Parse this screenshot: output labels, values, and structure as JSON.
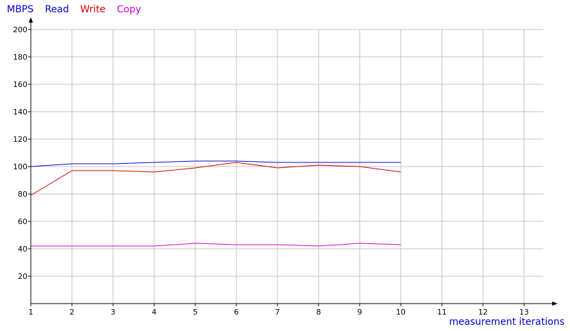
{
  "chart_data": {
    "type": "line",
    "unit_label": "MBPS",
    "xlabel": "measurement iterations",
    "ylabel": "",
    "xlim": [
      1,
      13
    ],
    "ylim": [
      0,
      200
    ],
    "x_ticks": [
      1,
      2,
      3,
      4,
      5,
      6,
      7,
      8,
      9,
      10,
      11,
      12,
      13
    ],
    "y_ticks": [
      20,
      40,
      60,
      80,
      100,
      120,
      140,
      160,
      180,
      200
    ],
    "grid": true,
    "legend_position": "top-left",
    "x": [
      1,
      2,
      3,
      4,
      5,
      6,
      7,
      8,
      9,
      10
    ],
    "series": [
      {
        "name": "Read",
        "color": "#0000cc",
        "values": [
          100,
          102,
          102,
          103,
          104,
          104,
          103,
          103,
          103,
          103
        ]
      },
      {
        "name": "Write",
        "color": "#cc0000",
        "values": [
          79,
          97,
          97,
          96,
          99,
          103,
          99,
          101,
          100,
          96
        ]
      },
      {
        "name": "Copy",
        "color": "#cc00cc",
        "values": [
          42,
          42,
          42,
          42,
          44,
          43,
          43,
          42,
          44,
          43
        ]
      }
    ],
    "unit_color": "#0000cc",
    "grid_color": "#c0c0c0",
    "axis_color": "#000000"
  }
}
